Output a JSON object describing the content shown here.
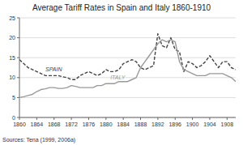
{
  "chart_data": {
    "type": "line",
    "title": "Average Tariff Rates in Spain and Italy 1860-1910",
    "annotations": [
      "Sources: Tena (1999, 2006a)"
    ],
    "x": [
      1860,
      1861,
      1862,
      1863,
      1864,
      1865,
      1866,
      1867,
      1868,
      1869,
      1870,
      1871,
      1872,
      1873,
      1874,
      1875,
      1876,
      1877,
      1878,
      1879,
      1880,
      1881,
      1882,
      1883,
      1884,
      1885,
      1886,
      1887,
      1888,
      1889,
      1890,
      1891,
      1892,
      1893,
      1894,
      1895,
      1896,
      1897,
      1898,
      1899,
      1900,
      1901,
      1902,
      1903,
      1904,
      1905,
      1906,
      1907,
      1908,
      1909,
      1910
    ],
    "series": [
      {
        "name": "SPAIN",
        "color": "#444444",
        "line_style": "dashed",
        "values": [
          14.5,
          13.5,
          12.5,
          12.0,
          11.5,
          11.0,
          10.5,
          10.5,
          10.5,
          10.5,
          10.2,
          10.0,
          9.5,
          9.5,
          10.5,
          11.0,
          11.5,
          11.0,
          10.5,
          11.0,
          12.0,
          11.5,
          11.5,
          12.0,
          13.5,
          14.0,
          14.5,
          14.0,
          12.5,
          12.0,
          12.5,
          13.0,
          21.0,
          18.0,
          17.5,
          20.0,
          17.0,
          16.5,
          11.5,
          14.0,
          13.5,
          12.5,
          13.0,
          14.0,
          15.5,
          14.0,
          12.5,
          14.0,
          14.0,
          12.5,
          12.0
        ]
      },
      {
        "name": "ITALY",
        "color": "#999999",
        "line_style": "solid",
        "values": [
          5.0,
          5.2,
          5.5,
          5.8,
          6.5,
          7.0,
          7.2,
          7.5,
          7.5,
          7.3,
          7.3,
          7.5,
          8.0,
          7.8,
          7.5,
          7.5,
          7.5,
          7.5,
          8.0,
          8.0,
          8.5,
          8.5,
          8.5,
          9.0,
          9.0,
          9.0,
          9.5,
          10.0,
          12.5,
          14.0,
          15.5,
          17.0,
          18.5,
          19.5,
          19.0,
          19.5,
          19.0,
          14.0,
          12.0,
          11.5,
          11.0,
          10.5,
          10.5,
          10.5,
          11.0,
          11.0,
          11.0,
          11.0,
          10.5,
          10.0,
          9.0
        ]
      }
    ],
    "xlim": [
      1860,
      1910
    ],
    "xticks": [
      1860,
      1864,
      1868,
      1872,
      1876,
      1880,
      1884,
      1888,
      1892,
      1896,
      1900,
      1904,
      1908
    ],
    "ylim": [
      0,
      25
    ],
    "yticks": [
      0,
      5,
      10,
      15,
      20,
      25
    ],
    "grid": true
  }
}
